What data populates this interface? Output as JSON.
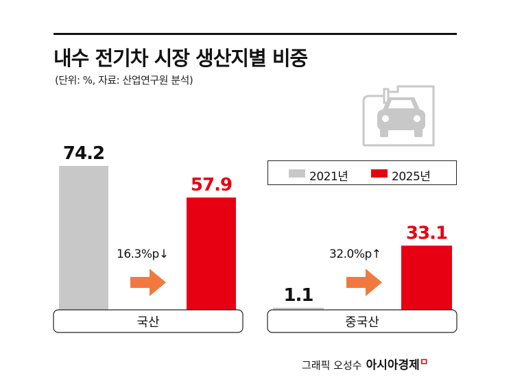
{
  "title": "내수 전기차 시장 생산지별 비중",
  "subtitle": "(단위: %, 자료: 산업연구원 분석)",
  "legend": {
    "item_2021": "2021년",
    "item_2025": "2025년"
  },
  "colors": {
    "y2021": "#c8c8c8",
    "y2025": "#e60012",
    "arrow": "#f06a2a",
    "text": "#111111"
  },
  "icons": {
    "ev_charging": "ev-charging-car-icon"
  },
  "chart_data": {
    "type": "bar",
    "categories": [
      "국산",
      "중국산"
    ],
    "series": [
      {
        "name": "2021년",
        "values": [
          74.2,
          1.1
        ],
        "labels": [
          "74.2",
          "1.1"
        ]
      },
      {
        "name": "2025년",
        "values": [
          57.9,
          33.1
        ],
        "labels": [
          "57.9",
          "33.1"
        ]
      }
    ],
    "annotations": [
      "16.3%p↓",
      "32.0%p↑"
    ],
    "unit": "%",
    "ylim": [
      0,
      80
    ]
  },
  "credit": {
    "text": "그래픽 오성수",
    "brand": "아시아경제",
    "brand_mark": "ㅁ"
  }
}
